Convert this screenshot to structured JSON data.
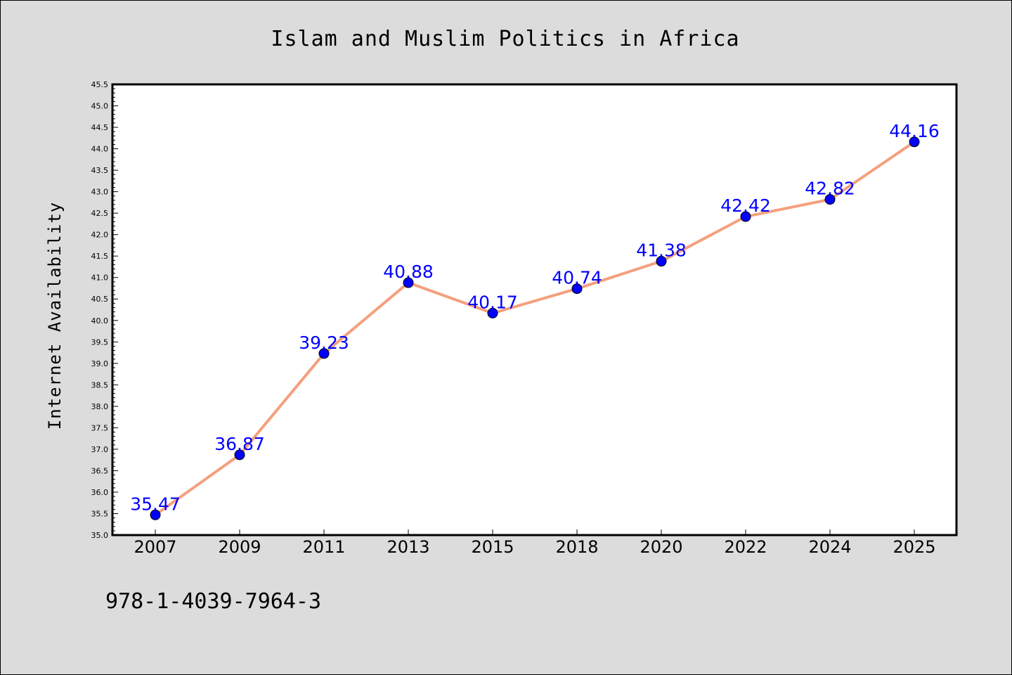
{
  "chart_data": {
    "type": "line",
    "title": "Islam and Muslim Politics in Africa",
    "xlabel": "",
    "ylabel": "Internet Availability",
    "categories": [
      "2007",
      "2009",
      "2011",
      "2013",
      "2015",
      "2018",
      "2020",
      "2022",
      "2024",
      "2025"
    ],
    "series": [
      {
        "values": [
          35.47,
          36.87,
          39.23,
          40.88,
          40.17,
          40.74,
          41.38,
          42.42,
          42.82,
          44.16
        ],
        "data_labels": [
          "35.47",
          "36.87",
          "39.23",
          "40.88",
          "40.17",
          "40.74",
          "41.38",
          "42.42",
          "42.82",
          "44.16"
        ],
        "line_color": "#f4a07e",
        "marker_color": "#0000ff"
      }
    ],
    "ylim": [
      35.0,
      45.5
    ],
    "yticks": [
      "35.0",
      "35.5",
      "36.0",
      "36.5",
      "37.0",
      "37.5",
      "38.0",
      "38.5",
      "39.0",
      "39.5",
      "40.0",
      "40.5",
      "41.0",
      "41.5",
      "42.0",
      "42.5",
      "43.0",
      "43.5",
      "44.0",
      "44.5",
      "45.0",
      "45.5"
    ],
    "grid": false,
    "legend": "none"
  },
  "footer": {
    "isbn": "978-1-4039-7964-3"
  },
  "colors": {
    "background": "#dcdcdc",
    "plot_background": "#ffffff",
    "line": "#f4a07e",
    "marker": "#0000ff",
    "data_label": "#0000ff"
  }
}
